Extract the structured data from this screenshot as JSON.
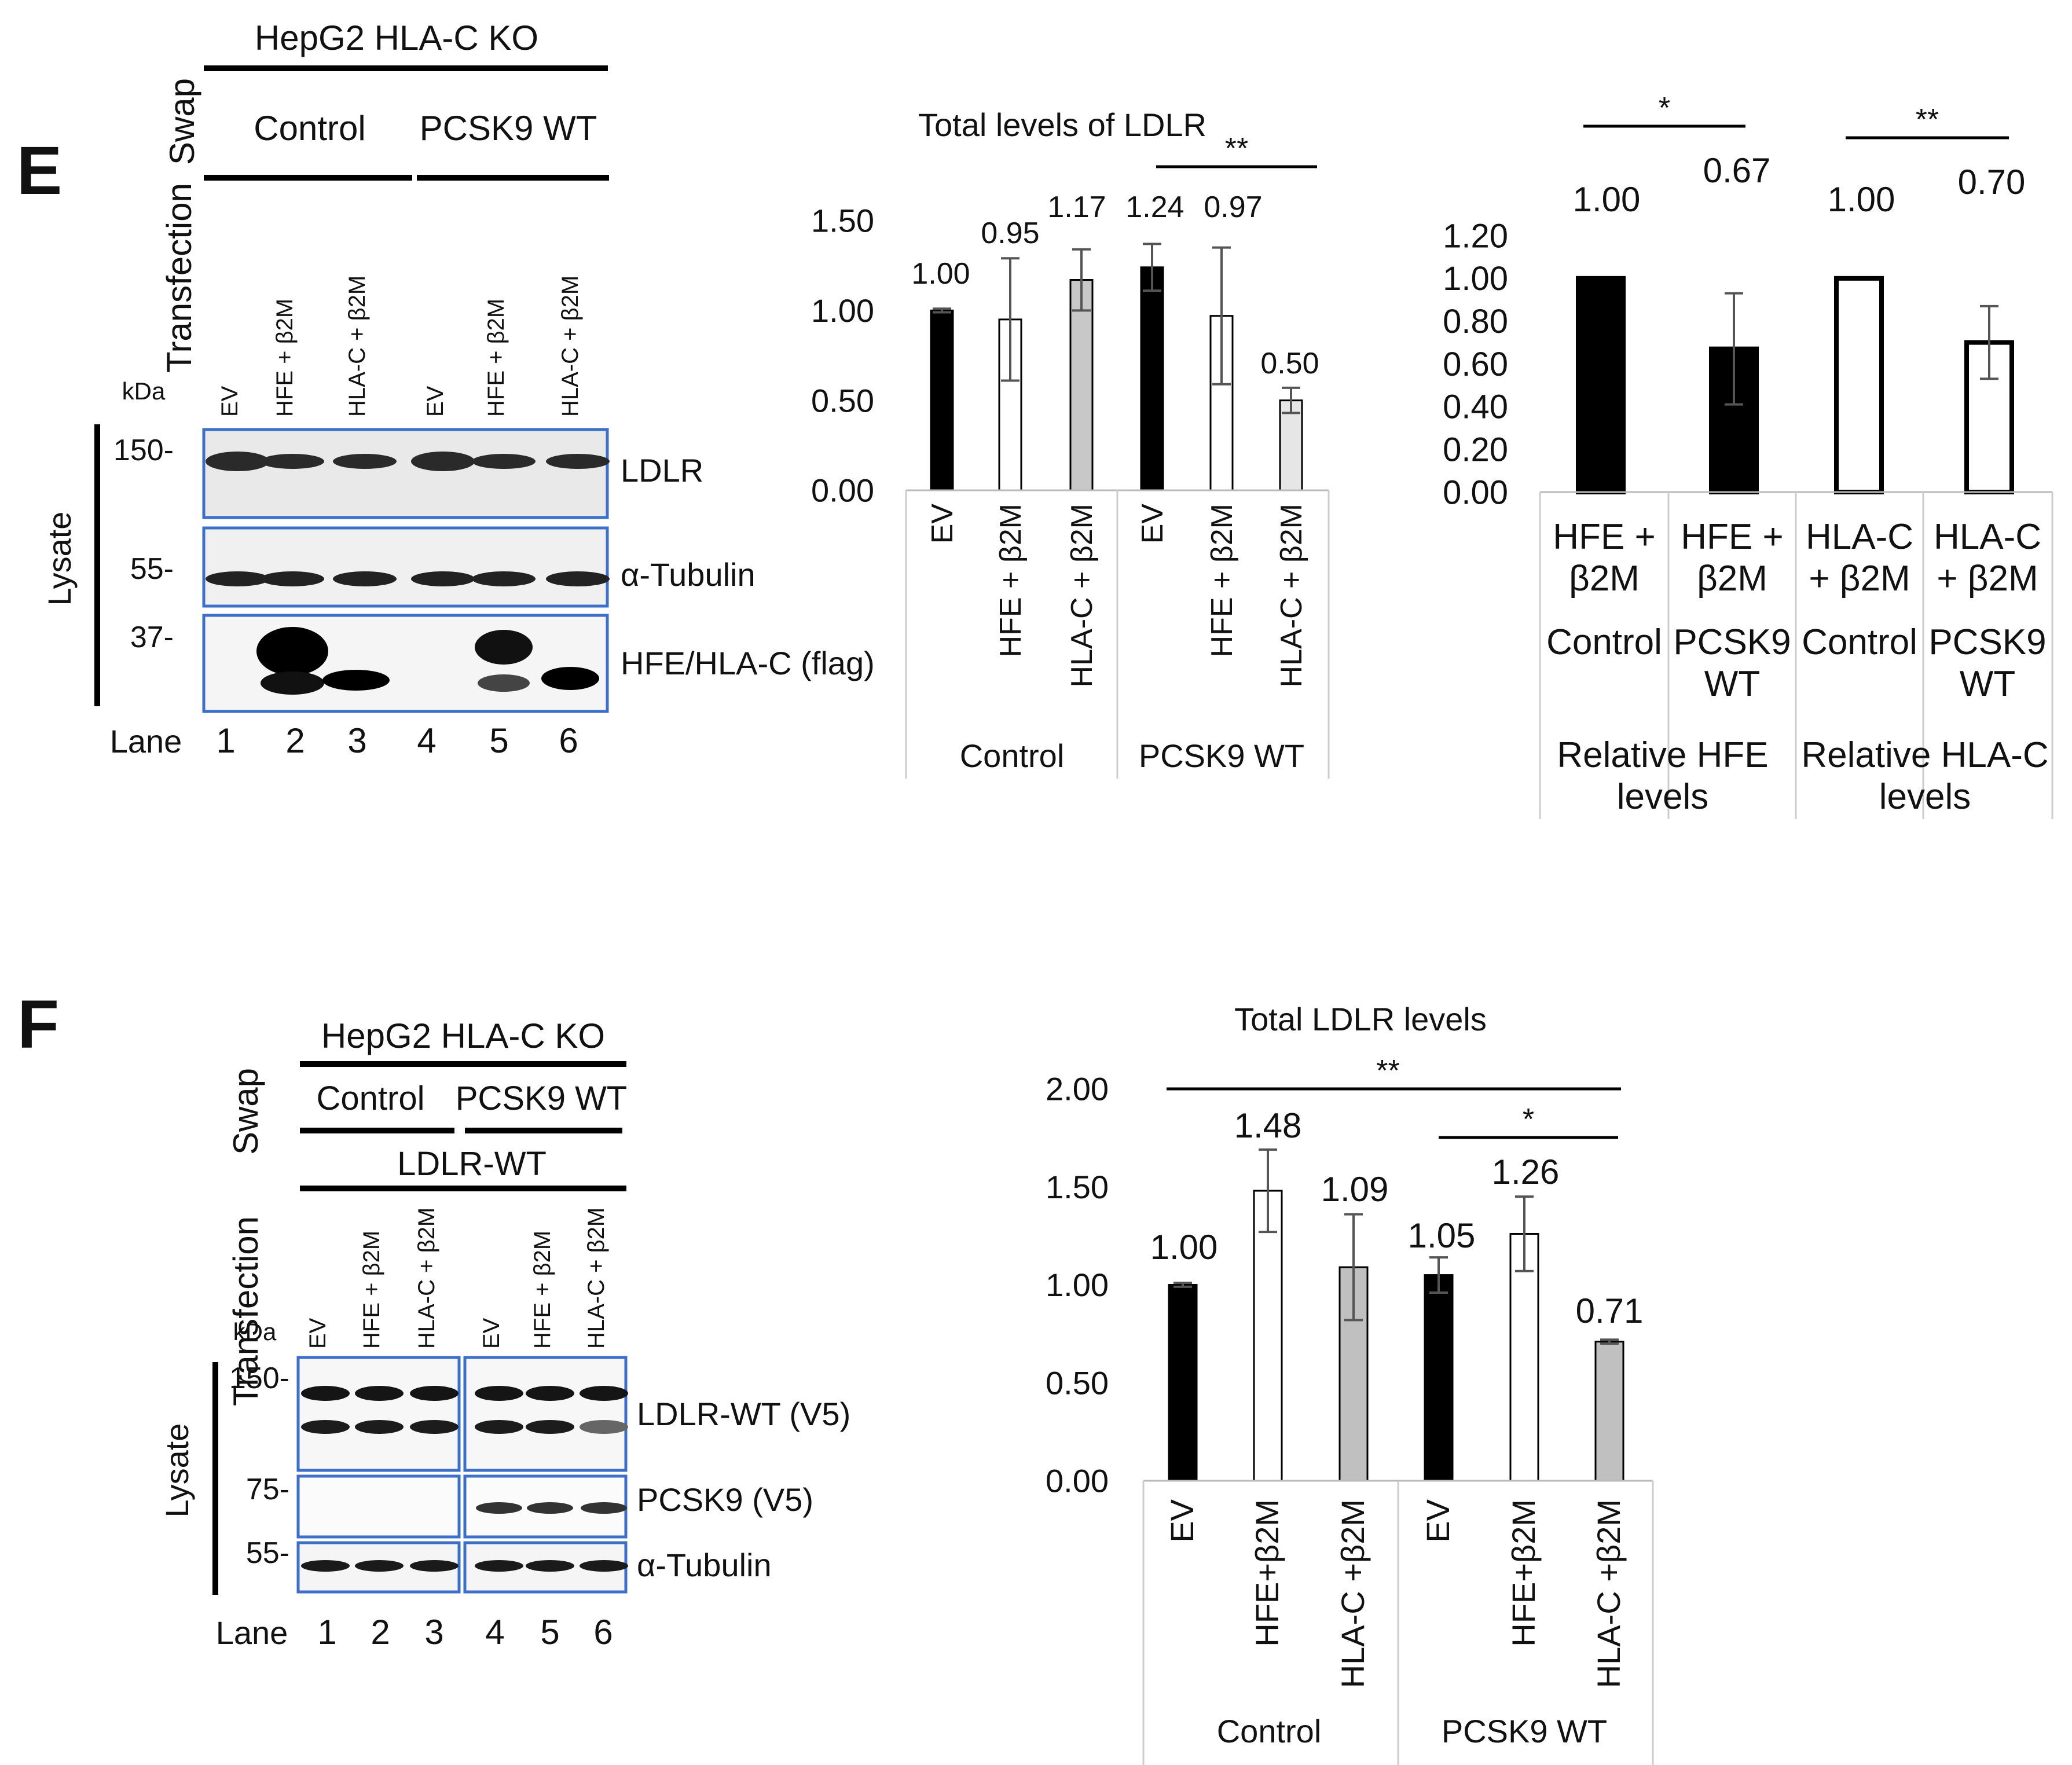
{
  "panel_e": {
    "letter": "E",
    "blot": {
      "cell_line": "HepG2 HLA-C KO",
      "swap_label": "Swap",
      "transfection_label": "Transfection",
      "swap_groups": [
        "Control",
        "PCSK9 WT"
      ],
      "lanes": [
        "EV",
        "HFE + β2M",
        "HLA-C + β2M",
        "EV",
        "HFE + β2M",
        "HLA-C + β2M"
      ],
      "kda_label": "kDa",
      "lysate_label": "Lysate",
      "markers": [
        "150-",
        "55-",
        "37-"
      ],
      "band_labels": [
        "LDLR",
        "α-Tubulin",
        "HFE/HLA-C (flag)"
      ],
      "lane_label": "Lane",
      "lane_numbers": [
        "1",
        "2",
        "3",
        "4",
        "5",
        "6"
      ]
    }
  },
  "panel_f": {
    "letter": "F",
    "blot": {
      "cell_line": "HepG2 HLA-C KO",
      "swap_label": "Swap",
      "transfection_label": "Transfection",
      "swap_groups": [
        "Control",
        "PCSK9 WT"
      ],
      "construct": "LDLR-WT",
      "lanes": [
        "EV",
        "HFE + β2M",
        "HLA-C + β2M",
        "EV",
        "HFE + β2M",
        "HLA-C + β2M"
      ],
      "kda_label": "kDa",
      "lysate_label": "Lysate",
      "markers": [
        "150-",
        "75-",
        "55-"
      ],
      "band_labels": [
        "LDLR-WT (V5)",
        "PCSK9 (V5)",
        "α-Tubulin"
      ],
      "lane_label": "Lane",
      "lane_numbers": [
        "1",
        "2",
        "3",
        "4",
        "5",
        "6"
      ]
    }
  },
  "chart_data": [
    {
      "type": "bar",
      "title": "Total levels of LDLR",
      "xlabel": "",
      "ylabel": "",
      "groups": [
        "Control",
        "PCSK9 WT"
      ],
      "categories": [
        "EV",
        "HFE + β2M",
        "HLA-C + β2M",
        "EV",
        "HFE + β2M",
        "HLA-C + β2M"
      ],
      "values": [
        1.0,
        0.95,
        1.17,
        1.24,
        0.97,
        0.5
      ],
      "value_labels": [
        "1.00",
        "0.95",
        "1.17",
        "1.24",
        "0.97",
        "0.50"
      ],
      "errors": [
        0.01,
        0.34,
        0.17,
        0.13,
        0.38,
        0.07
      ],
      "bar_fills": [
        "#000000",
        "#ffffff",
        "#c8c8c8",
        "#000000",
        "#ffffff",
        "#e6e6e6"
      ],
      "ylim": [
        0,
        1.5
      ],
      "yticks": [
        "0.00",
        "0.50",
        "1.00",
        "1.50"
      ],
      "grid": false,
      "significance": [
        {
          "from": 3,
          "to": 5,
          "label": "**"
        }
      ]
    },
    {
      "type": "bar",
      "title": "",
      "xlabel": "",
      "ylabel": "",
      "groups": [
        "Relative HFE levels",
        "Relative HLA-C levels"
      ],
      "categories": [
        "HFE + β2M",
        "HFE + β2M",
        "HLA-C + β2M",
        "HLA-C + β2M"
      ],
      "subcategories": [
        "Control",
        "PCSK9 WT",
        "Control",
        "PCSK9 WT"
      ],
      "values": [
        1.0,
        0.67,
        1.0,
        0.7
      ],
      "value_labels": [
        "1.00",
        "0.67",
        "1.00",
        "0.70"
      ],
      "errors": [
        0.0,
        0.26,
        0.0,
        0.17
      ],
      "bar_fills": [
        "#000000",
        "#000000",
        "#ffffff",
        "#ffffff"
      ],
      "ylim": [
        0,
        1.2
      ],
      "yticks": [
        "0.00",
        "0.20",
        "0.40",
        "0.60",
        "0.80",
        "1.00",
        "1.20"
      ],
      "grid": false,
      "significance": [
        {
          "from": 0,
          "to": 1,
          "label": "*"
        },
        {
          "from": 2,
          "to": 3,
          "label": "**"
        }
      ]
    },
    {
      "type": "bar",
      "title": "Total LDLR levels",
      "xlabel": "",
      "ylabel": "",
      "groups": [
        "Control",
        "PCSK9 WT"
      ],
      "categories": [
        "EV",
        "HFE+β2M",
        "HLA-C +β2M",
        "EV",
        "HFE+β2M",
        "HLA-C +β2M"
      ],
      "values": [
        1.0,
        1.48,
        1.09,
        1.05,
        1.26,
        0.71
      ],
      "value_labels": [
        "1.00",
        "1.48",
        "1.09",
        "1.05",
        "1.26",
        "0.71"
      ],
      "errors": [
        0.01,
        0.21,
        0.27,
        0.09,
        0.19,
        0.01
      ],
      "bar_fills": [
        "#000000",
        "#ffffff",
        "#c0c0c0",
        "#000000",
        "#ffffff",
        "#c0c0c0"
      ],
      "ylim": [
        0,
        2.0
      ],
      "yticks": [
        "0.00",
        "0.50",
        "1.00",
        "1.50",
        "2.00"
      ],
      "grid": false,
      "significance": [
        {
          "from": 0,
          "to": 5,
          "label": "**"
        },
        {
          "from": 3,
          "to": 5,
          "label": "*"
        }
      ]
    }
  ]
}
